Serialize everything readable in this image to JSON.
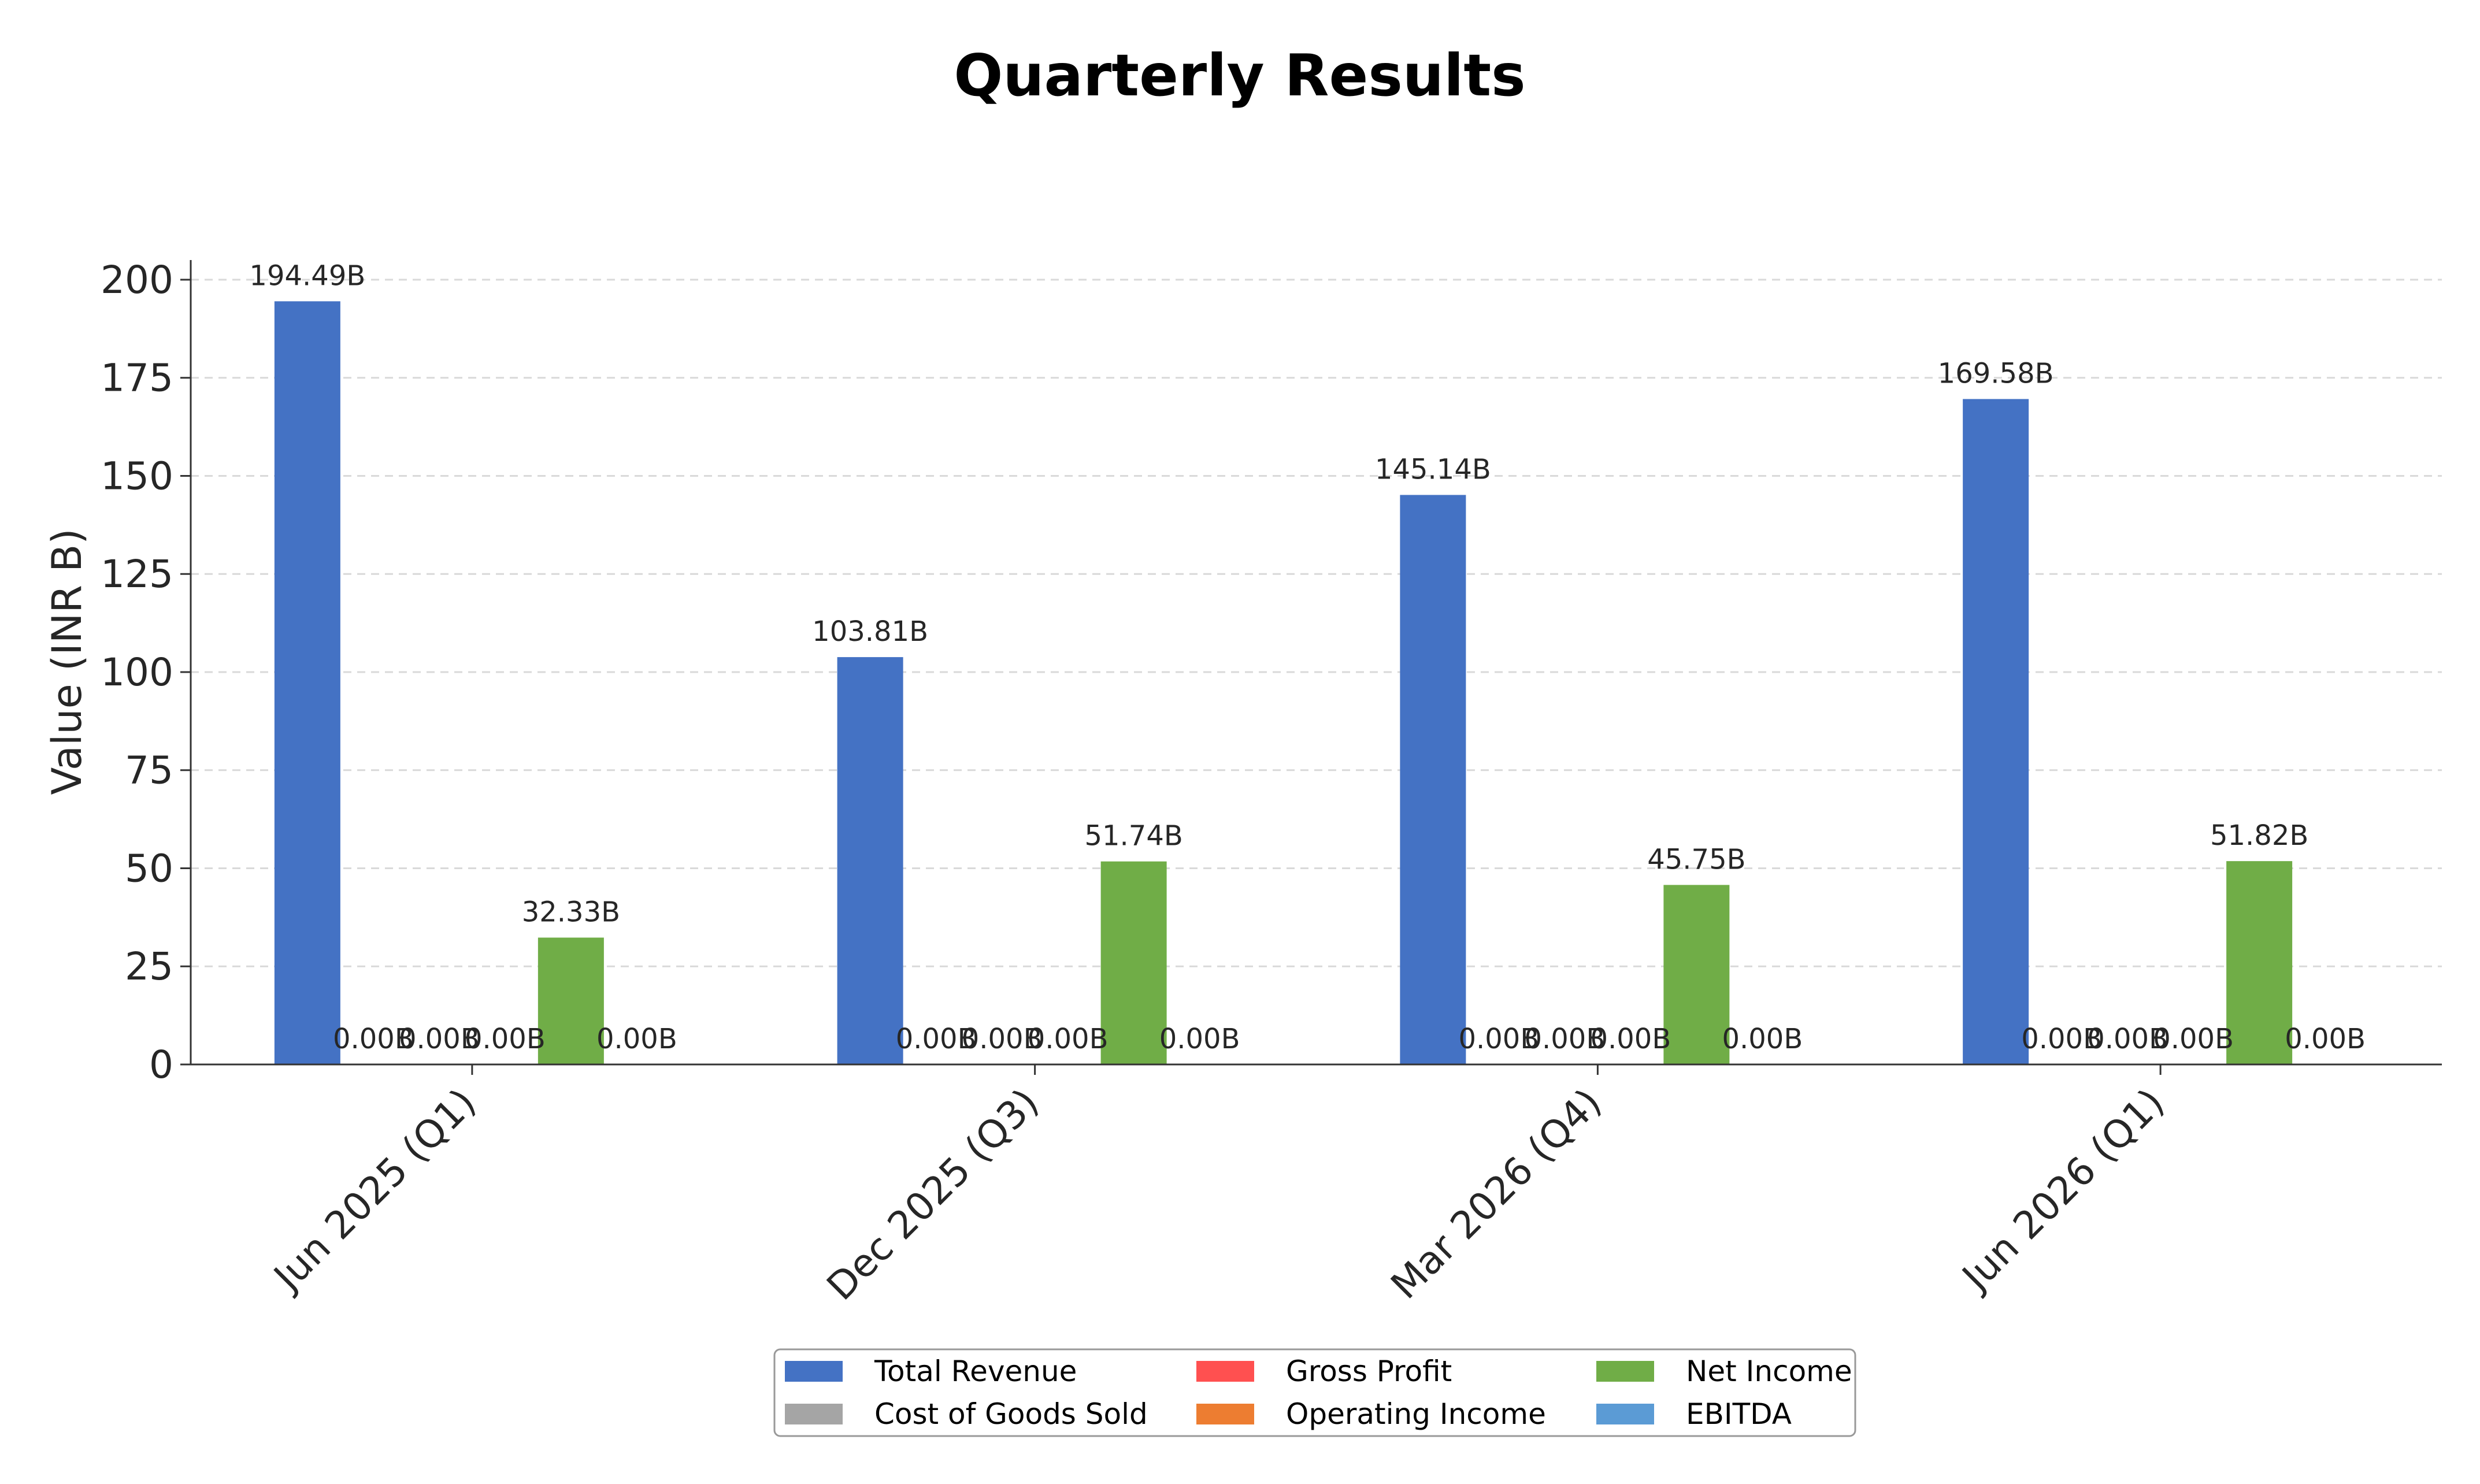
{
  "chart_data": {
    "type": "bar",
    "title": "Quarterly Results",
    "xlabel": "",
    "ylabel": "Value (INR B)",
    "ylim": [
      0,
      205
    ],
    "yticks": [
      0,
      25,
      50,
      75,
      100,
      125,
      150,
      175,
      200
    ],
    "grid": "y-dashed",
    "legend_position": "bottom-center",
    "label_suffix": "B",
    "categories": [
      "Jun 2025 (Q1)",
      "Dec 2025 (Q3)",
      "Mar 2026 (Q4)",
      "Jun 2026 (Q1)"
    ],
    "series": [
      {
        "name": "Total Revenue",
        "color": "#4472c4",
        "values": [
          194.49,
          103.81,
          145.14,
          169.58
        ]
      },
      {
        "name": "Cost of Goods Sold",
        "color": "#a5a5a5",
        "values": [
          0.0,
          0.0,
          0.0,
          0.0
        ]
      },
      {
        "name": "Gross Profit",
        "color": "#ff5050",
        "values": [
          0.0,
          0.0,
          0.0,
          0.0
        ]
      },
      {
        "name": "Operating Income",
        "color": "#ed7d31",
        "values": [
          0.0,
          0.0,
          0.0,
          0.0
        ]
      },
      {
        "name": "Net Income",
        "color": "#70ad47",
        "values": [
          32.33,
          51.74,
          45.75,
          51.82
        ]
      },
      {
        "name": "EBITDA",
        "color": "#5b9bd5",
        "values": [
          0.0,
          0.0,
          0.0,
          0.0
        ]
      }
    ]
  }
}
